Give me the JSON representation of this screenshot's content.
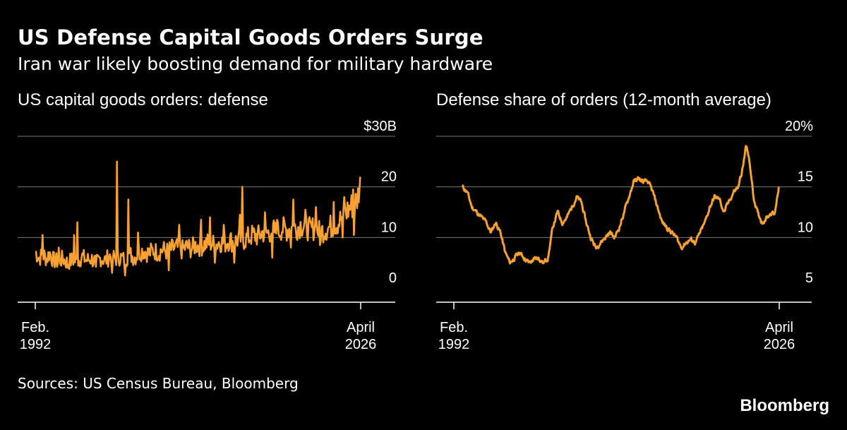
{
  "header": {
    "title": "US Defense Capital Goods Orders Surge",
    "subtitle": "Iran war likely boosting demand for military hardware"
  },
  "colors": {
    "line": "#f7a033",
    "grid": "#7a7a7a",
    "axis": "#ffffff",
    "background": "#000000"
  },
  "chart_data": [
    {
      "type": "line",
      "title": "US capital goods orders: defense",
      "y_unit": "billions of US dollars",
      "ylim": [
        0,
        30
      ],
      "y_ticks": [
        0,
        10,
        20,
        30
      ],
      "y_tick_labels": [
        "0",
        "10",
        "20",
        "$30B"
      ],
      "y_axis_side": "right",
      "grid": true,
      "x_range": [
        "1992-02",
        "2026-04"
      ],
      "x_tick_labels": [
        {
          "line1": "Feb.",
          "line2": "1992"
        },
        {
          "line1": "April",
          "line2": "2026"
        }
      ],
      "series": [
        {
          "points": [
            [
              1992.1,
              7.2
            ],
            [
              1992.5,
              6.0
            ],
            [
              1993.0,
              6.5
            ],
            [
              1993.3,
              5.8
            ],
            [
              1993.6,
              7.0
            ],
            [
              1994.0,
              5.5
            ],
            [
              1994.5,
              5.2
            ],
            [
              1995.0,
              5.8
            ],
            [
              1995.5,
              5.0
            ],
            [
              1996.0,
              5.6
            ],
            [
              1996.5,
              5.2
            ],
            [
              1997.0,
              6.2
            ],
            [
              1997.5,
              5.5
            ],
            [
              1998.0,
              5.8
            ],
            [
              1998.5,
              5.0
            ],
            [
              1999.0,
              6.0
            ],
            [
              1999.5,
              5.5
            ],
            [
              2000.0,
              6.5
            ],
            [
              2000.5,
              5.8
            ],
            [
              2001.0,
              6.2
            ],
            [
              2001.5,
              5.5
            ],
            [
              2002.0,
              6.8
            ],
            [
              2002.5,
              6.0
            ],
            [
              2003.0,
              7.0
            ],
            [
              2003.5,
              7.5
            ],
            [
              2004.0,
              6.8
            ],
            [
              2004.5,
              7.5
            ],
            [
              2005.0,
              7.0
            ],
            [
              2005.5,
              7.6
            ],
            [
              2006.0,
              7.2
            ],
            [
              2006.5,
              7.8
            ],
            [
              2007.0,
              8.0
            ],
            [
              2007.5,
              7.5
            ],
            [
              2008.0,
              8.2
            ],
            [
              2008.5,
              7.8
            ],
            [
              2009.0,
              8.5
            ],
            [
              2009.5,
              8.2
            ],
            [
              2010.0,
              8.8
            ],
            [
              2010.5,
              9.0
            ],
            [
              2011.0,
              8.5
            ],
            [
              2011.5,
              9.2
            ],
            [
              2012.0,
              8.8
            ],
            [
              2012.5,
              9.5
            ],
            [
              2013.0,
              9.0
            ],
            [
              2013.5,
              9.8
            ],
            [
              2014.0,
              9.5
            ],
            [
              2014.5,
              10.0
            ],
            [
              2015.0,
              10.5
            ],
            [
              2015.5,
              10.2
            ],
            [
              2016.0,
              11.0
            ],
            [
              2016.5,
              10.8
            ],
            [
              2017.0,
              11.5
            ],
            [
              2017.5,
              11.0
            ],
            [
              2018.0,
              11.8
            ],
            [
              2018.5,
              11.5
            ],
            [
              2019.0,
              12.0
            ],
            [
              2019.5,
              11.8
            ],
            [
              2020.0,
              12.5
            ],
            [
              2020.5,
              12.2
            ],
            [
              2021.0,
              11.5
            ],
            [
              2021.5,
              12.0
            ],
            [
              2022.0,
              11.0
            ],
            [
              2022.5,
              11.5
            ],
            [
              2023.0,
              12.0
            ],
            [
              2023.5,
              12.5
            ],
            [
              2024.0,
              13.0
            ],
            [
              2024.5,
              14.5
            ],
            [
              2025.0,
              15.5
            ],
            [
              2025.5,
              16.5
            ],
            [
              2025.8,
              17.0
            ],
            [
              2026.0,
              18.0
            ],
            [
              2026.25,
              22.0
            ]
          ],
          "spikes": [
            [
              1992.9,
              10.5
            ],
            [
              1994.6,
              8.0
            ],
            [
              1996.2,
              10.5
            ],
            [
              1996.5,
              13.0
            ],
            [
              2000.7,
              25.0
            ],
            [
              2001.9,
              17.5
            ],
            [
              2002.9,
              11.0
            ],
            [
              2007.2,
              12.5
            ],
            [
              2009.5,
              13.5
            ],
            [
              2010.5,
              14.0
            ],
            [
              2011.9,
              12.5
            ],
            [
              2013.6,
              14.5
            ],
            [
              2013.9,
              20.0
            ],
            [
              2016.2,
              15.0
            ],
            [
              2017.5,
              13.5
            ],
            [
              2019.2,
              17.5
            ],
            [
              2020.5,
              15.5
            ],
            [
              2021.6,
              16.0
            ],
            [
              2023.5,
              17.0
            ],
            [
              2024.6,
              18.0
            ],
            [
              2025.5,
              19.5
            ]
          ],
          "dips": [
            [
              1995.5,
              4.0
            ],
            [
              1998.5,
              4.2
            ],
            [
              2000.2,
              3.0
            ],
            [
              2001.5,
              2.5
            ],
            [
              2006.1,
              3.5
            ],
            [
              2011.0,
              5.0
            ],
            [
              2013.0,
              5.0
            ],
            [
              2017.0,
              6.0
            ],
            [
              2019.0,
              8.0
            ],
            [
              2022.0,
              8.5
            ],
            [
              2024.4,
              10.0
            ],
            [
              2025.6,
              10.5
            ]
          ]
        }
      ]
    },
    {
      "type": "line",
      "title": "Defense share of orders (12-month average)",
      "y_unit": "percent",
      "ylim": [
        5,
        20
      ],
      "y_ticks": [
        5,
        10,
        15,
        20
      ],
      "y_tick_labels": [
        "5",
        "10",
        "15",
        "20%"
      ],
      "y_axis_side": "right",
      "grid": true,
      "x_range": [
        "1992-02",
        "2026-04"
      ],
      "x_tick_labels": [
        {
          "line1": "Feb.",
          "line2": "1992"
        },
        {
          "line1": "April",
          "line2": "2026"
        }
      ],
      "series": [
        {
          "points": [
            [
              1993.0,
              15.0
            ],
            [
              1993.5,
              14.5
            ],
            [
              1994.0,
              13.0
            ],
            [
              1994.5,
              12.5
            ],
            [
              1995.0,
              12.0
            ],
            [
              1995.5,
              11.5
            ],
            [
              1996.0,
              10.5
            ],
            [
              1996.5,
              11.5
            ],
            [
              1997.0,
              10.5
            ],
            [
              1997.5,
              8.5
            ],
            [
              1998.0,
              7.5
            ],
            [
              1998.5,
              8.0
            ],
            [
              1999.0,
              8.5
            ],
            [
              1999.5,
              8.0
            ],
            [
              2000.0,
              7.5
            ],
            [
              2000.5,
              7.8
            ],
            [
              2001.0,
              8.0
            ],
            [
              2001.5,
              7.5
            ],
            [
              2002.0,
              8.0
            ],
            [
              2002.5,
              11.0
            ],
            [
              2003.0,
              12.5
            ],
            [
              2003.5,
              11.5
            ],
            [
              2004.0,
              12.0
            ],
            [
              2004.5,
              13.0
            ],
            [
              2005.0,
              14.0
            ],
            [
              2005.5,
              13.5
            ],
            [
              2006.0,
              11.5
            ],
            [
              2006.5,
              10.0
            ],
            [
              2007.0,
              9.0
            ],
            [
              2007.5,
              9.5
            ],
            [
              2008.0,
              10.0
            ],
            [
              2008.5,
              10.5
            ],
            [
              2009.0,
              10.0
            ],
            [
              2009.5,
              11.0
            ],
            [
              2010.0,
              12.5
            ],
            [
              2010.5,
              14.0
            ],
            [
              2011.0,
              15.5
            ],
            [
              2011.5,
              15.8
            ],
            [
              2012.0,
              15.5
            ],
            [
              2012.5,
              15.5
            ],
            [
              2013.0,
              14.5
            ],
            [
              2013.5,
              13.0
            ],
            [
              2014.0,
              11.5
            ],
            [
              2014.5,
              11.0
            ],
            [
              2015.0,
              10.5
            ],
            [
              2015.5,
              10.0
            ],
            [
              2016.0,
              9.0
            ],
            [
              2016.5,
              9.5
            ],
            [
              2017.0,
              9.8
            ],
            [
              2017.5,
              9.5
            ],
            [
              2018.0,
              10.5
            ],
            [
              2018.5,
              11.5
            ],
            [
              2019.0,
              13.0
            ],
            [
              2019.5,
              14.0
            ],
            [
              2020.0,
              13.8
            ],
            [
              2020.5,
              12.5
            ],
            [
              2021.0,
              13.5
            ],
            [
              2021.5,
              14.5
            ],
            [
              2022.0,
              15.0
            ],
            [
              2022.5,
              17.0
            ],
            [
              2022.8,
              19.0
            ],
            [
              2023.0,
              18.5
            ],
            [
              2023.3,
              16.5
            ],
            [
              2023.6,
              14.0
            ],
            [
              2024.0,
              12.5
            ],
            [
              2024.5,
              11.5
            ],
            [
              2025.0,
              12.0
            ],
            [
              2025.5,
              12.5
            ],
            [
              2025.8,
              12.2
            ],
            [
              2026.0,
              13.5
            ],
            [
              2026.25,
              15.0
            ]
          ],
          "spikes": [],
          "dips": []
        }
      ]
    }
  ],
  "footer": {
    "source": "Sources: US Census Bureau, Bloomberg",
    "brand": "Bloomberg"
  }
}
